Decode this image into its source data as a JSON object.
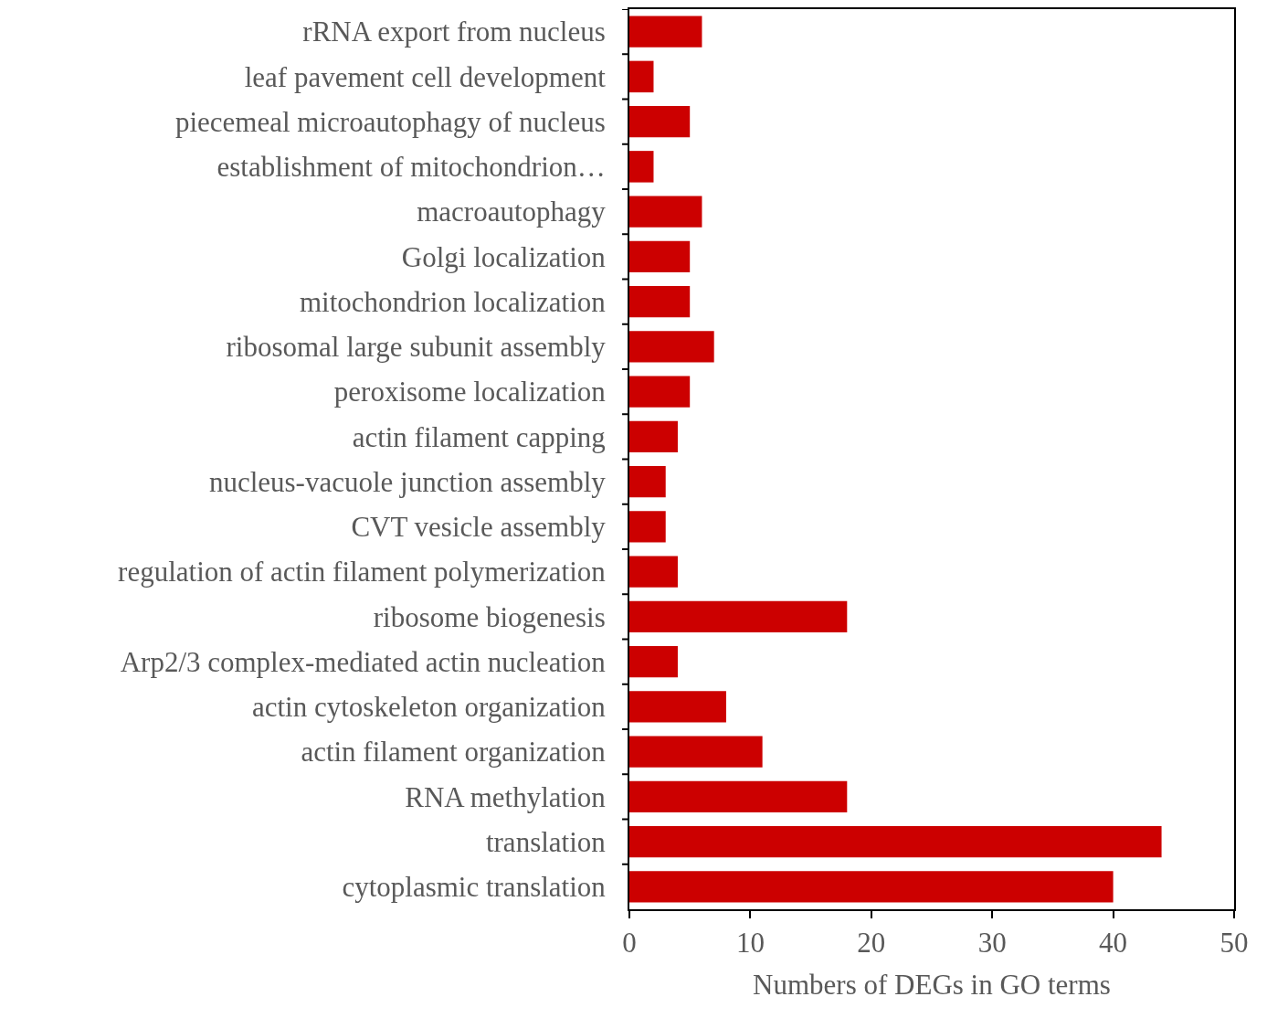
{
  "chart_data": {
    "type": "bar",
    "orientation": "horizontal",
    "xlabel": "Numbers of DEGs in GO terms",
    "categories": [
      "rRNA export from nucleus",
      "leaf pavement cell development",
      "piecemeal microautophagy of nucleus",
      "establishment of mitochondrion…",
      "macroautophagy",
      "Golgi localization",
      "mitochondrion localization",
      "ribosomal large subunit assembly",
      "peroxisome localization",
      "actin filament capping",
      "nucleus-vacuole junction assembly",
      "CVT vesicle assembly",
      "regulation of actin filament polymerization",
      "ribosome biogenesis",
      "Arp2/3 complex-mediated actin nucleation",
      "actin cytoskeleton organization",
      "actin filament organization",
      "RNA methylation",
      "translation",
      "cytoplasmic translation"
    ],
    "values": [
      6,
      2,
      5,
      2,
      6,
      5,
      5,
      7,
      5,
      4,
      3,
      3,
      4,
      18,
      4,
      8,
      11,
      18,
      44,
      40
    ],
    "color": "#cc0000",
    "xlim": [
      0,
      50
    ],
    "xticks": [
      0,
      10,
      20,
      30,
      40,
      50
    ],
    "grid": false
  }
}
